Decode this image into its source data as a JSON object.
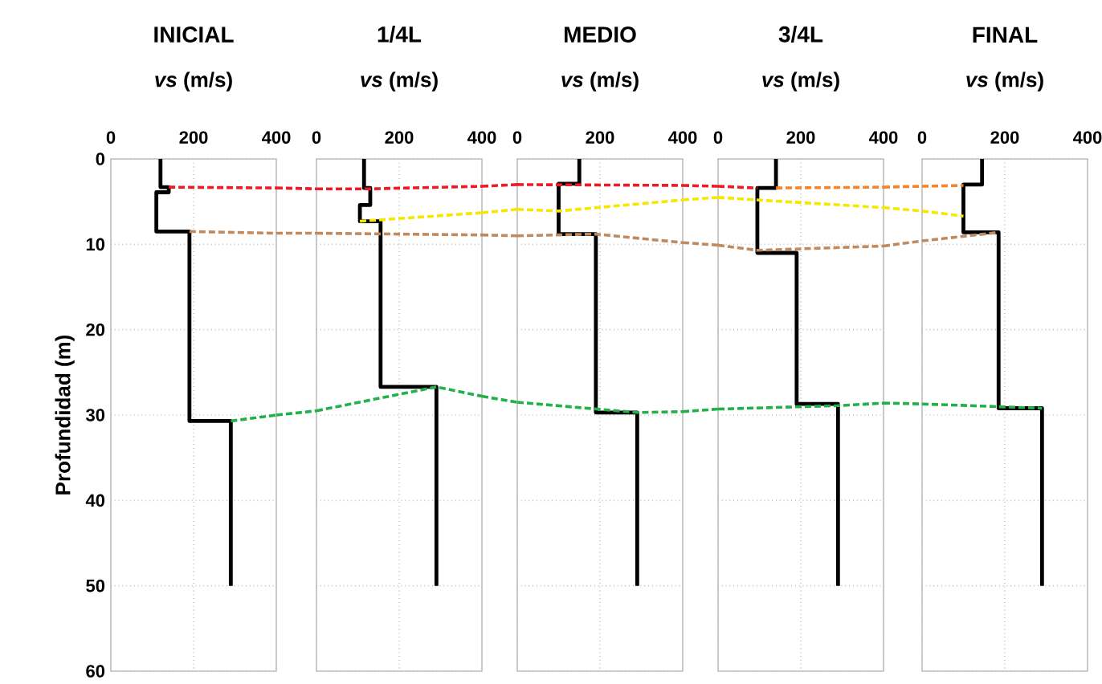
{
  "chart_data": [
    {
      "type": "line",
      "title": "INICIAL",
      "xlabel": "*vs* (m/s)",
      "ylabel": "Profundidad (m)",
      "xlim": [
        0,
        400
      ],
      "xticks": [
        0,
        200,
        400
      ],
      "ylim": [
        60,
        0
      ],
      "yticks": [
        0,
        10,
        20,
        30,
        40,
        50,
        60
      ],
      "grid": true,
      "series": [
        {
          "color": "#000000",
          "line_style": "solid",
          "x": [
            120,
            120,
            140,
            140,
            110,
            110,
            190,
            190,
            290,
            290
          ],
          "values": [
            0,
            3.3,
            3.3,
            3.9,
            3.9,
            8.5,
            8.5,
            30.7,
            30.7,
            50
          ]
        },
        {
          "color": "#ed1c24",
          "line_style": "dashed",
          "x": [
            140,
            400
          ],
          "values": [
            3.3,
            3.4
          ]
        },
        {
          "color": "#c08a5e",
          "line_style": "dashed",
          "x": [
            190,
            400
          ],
          "values": [
            8.5,
            8.7
          ]
        },
        {
          "color": "#22b04b",
          "line_style": "dashed",
          "x": [
            290,
            400
          ],
          "values": [
            30.7,
            30.0
          ]
        }
      ]
    },
    {
      "type": "line",
      "title": "1/4L",
      "xlabel": "*vs* (m/s)",
      "xlim": [
        0,
        400
      ],
      "xticks": [
        0,
        200,
        400
      ],
      "ylim": [
        60,
        0
      ],
      "yticks": [
        0,
        10,
        20,
        30,
        40,
        50,
        60
      ],
      "grid": true,
      "tick_labels": "x",
      "series": [
        {
          "color": "#000000",
          "line_style": "solid",
          "x": [
            115,
            115,
            130,
            130,
            105,
            105,
            155,
            155,
            290,
            290
          ],
          "values": [
            0,
            3.4,
            3.4,
            5.4,
            5.4,
            7.3,
            7.3,
            26.7,
            26.7,
            50
          ]
        },
        {
          "color": "#ed1c24",
          "line_style": "dashed",
          "x": [
            0,
            130,
            400
          ],
          "values": [
            3.5,
            3.5,
            3.2
          ]
        },
        {
          "color": "#f5e800",
          "line_style": "dashed",
          "x": [
            105,
            400
          ],
          "values": [
            7.3,
            6.3
          ]
        },
        {
          "color": "#c08a5e",
          "line_style": "dashed",
          "x": [
            0,
            400
          ],
          "values": [
            8.7,
            8.9
          ]
        },
        {
          "color": "#22b04b",
          "line_style": "dashed",
          "x": [
            0,
            290,
            400
          ],
          "values": [
            29.5,
            26.7,
            27.8
          ]
        }
      ]
    },
    {
      "type": "line",
      "title": "MEDIO",
      "xlabel": "*vs* (m/s)",
      "xlim": [
        0,
        400
      ],
      "xticks": [
        0,
        200,
        400
      ],
      "ylim": [
        60,
        0
      ],
      "yticks": [
        0,
        10,
        20,
        30,
        40,
        50,
        60
      ],
      "grid": true,
      "tick_labels": "x",
      "series": [
        {
          "color": "#000000",
          "line_style": "solid",
          "x": [
            150,
            150,
            100,
            100,
            190,
            190,
            290,
            290
          ],
          "values": [
            0,
            2.9,
            2.9,
            8.8,
            8.8,
            29.7,
            29.7,
            50
          ]
        },
        {
          "color": "#ed1c24",
          "line_style": "dashed",
          "x": [
            0,
            400
          ],
          "values": [
            3.0,
            3.1
          ]
        },
        {
          "color": "#f5e800",
          "line_style": "dashed",
          "x": [
            0,
            100,
            400
          ],
          "values": [
            5.9,
            6.1,
            4.8
          ]
        },
        {
          "color": "#c08a5e",
          "line_style": "dashed",
          "x": [
            0,
            190,
            400
          ],
          "values": [
            9.0,
            8.8,
            9.8
          ]
        },
        {
          "color": "#22b04b",
          "line_style": "dashed",
          "x": [
            0,
            290,
            400
          ],
          "values": [
            28.5,
            29.7,
            29.6
          ]
        }
      ]
    },
    {
      "type": "line",
      "title": "3/4L",
      "xlabel": "*vs* (m/s)",
      "xlim": [
        0,
        400
      ],
      "xticks": [
        0,
        200,
        400
      ],
      "ylim": [
        60,
        0
      ],
      "yticks": [
        0,
        10,
        20,
        30,
        40,
        50,
        60
      ],
      "grid": true,
      "tick_labels": "x",
      "series": [
        {
          "color": "#000000",
          "line_style": "solid",
          "x": [
            140,
            140,
            95,
            95,
            190,
            190,
            290,
            290
          ],
          "values": [
            0,
            3.4,
            3.4,
            11,
            11,
            28.7,
            28.7,
            50
          ]
        },
        {
          "color": "#ed1c24",
          "line_style": "dashed",
          "x": [
            0,
            95
          ],
          "values": [
            3.2,
            3.4
          ]
        },
        {
          "color": "#f7842b",
          "line_style": "dashed",
          "x": [
            140,
            400
          ],
          "values": [
            3.4,
            3.3
          ]
        },
        {
          "color": "#f5e800",
          "line_style": "dashed",
          "x": [
            0,
            95,
            400
          ],
          "values": [
            4.5,
            4.8,
            5.7
          ]
        },
        {
          "color": "#c08a5e",
          "line_style": "dashed",
          "x": [
            0,
            95,
            400
          ],
          "values": [
            10.1,
            10.7,
            10.2
          ]
        },
        {
          "color": "#22b04b",
          "line_style": "dashed",
          "x": [
            0,
            290,
            400
          ],
          "values": [
            29.3,
            28.9,
            28.6
          ]
        }
      ]
    },
    {
      "type": "line",
      "title": "FINAL",
      "xlabel": "*vs* (m/s)",
      "xlim": [
        0,
        400
      ],
      "xticks": [
        0,
        200,
        400
      ],
      "ylim": [
        60,
        0
      ],
      "yticks": [
        0,
        10,
        20,
        30,
        40,
        50,
        60
      ],
      "grid": true,
      "tick_labels": "x",
      "series": [
        {
          "color": "#000000",
          "line_style": "solid",
          "x": [
            145,
            145,
            100,
            100,
            185,
            185,
            290,
            290
          ],
          "values": [
            0,
            3,
            3,
            8.6,
            8.6,
            29.2,
            29.2,
            50
          ]
        },
        {
          "color": "#f7842b",
          "line_style": "dashed",
          "x": [
            0,
            100
          ],
          "values": [
            3.2,
            3.1
          ]
        },
        {
          "color": "#f5e800",
          "line_style": "dashed",
          "x": [
            0,
            100
          ],
          "values": [
            6.1,
            6.7
          ]
        },
        {
          "color": "#c08a5e",
          "line_style": "dashed",
          "x": [
            0,
            185
          ],
          "values": [
            9.6,
            8.6
          ]
        },
        {
          "color": "#22b04b",
          "line_style": "dashed",
          "x": [
            0,
            290
          ],
          "values": [
            28.7,
            29.2
          ]
        }
      ]
    }
  ]
}
